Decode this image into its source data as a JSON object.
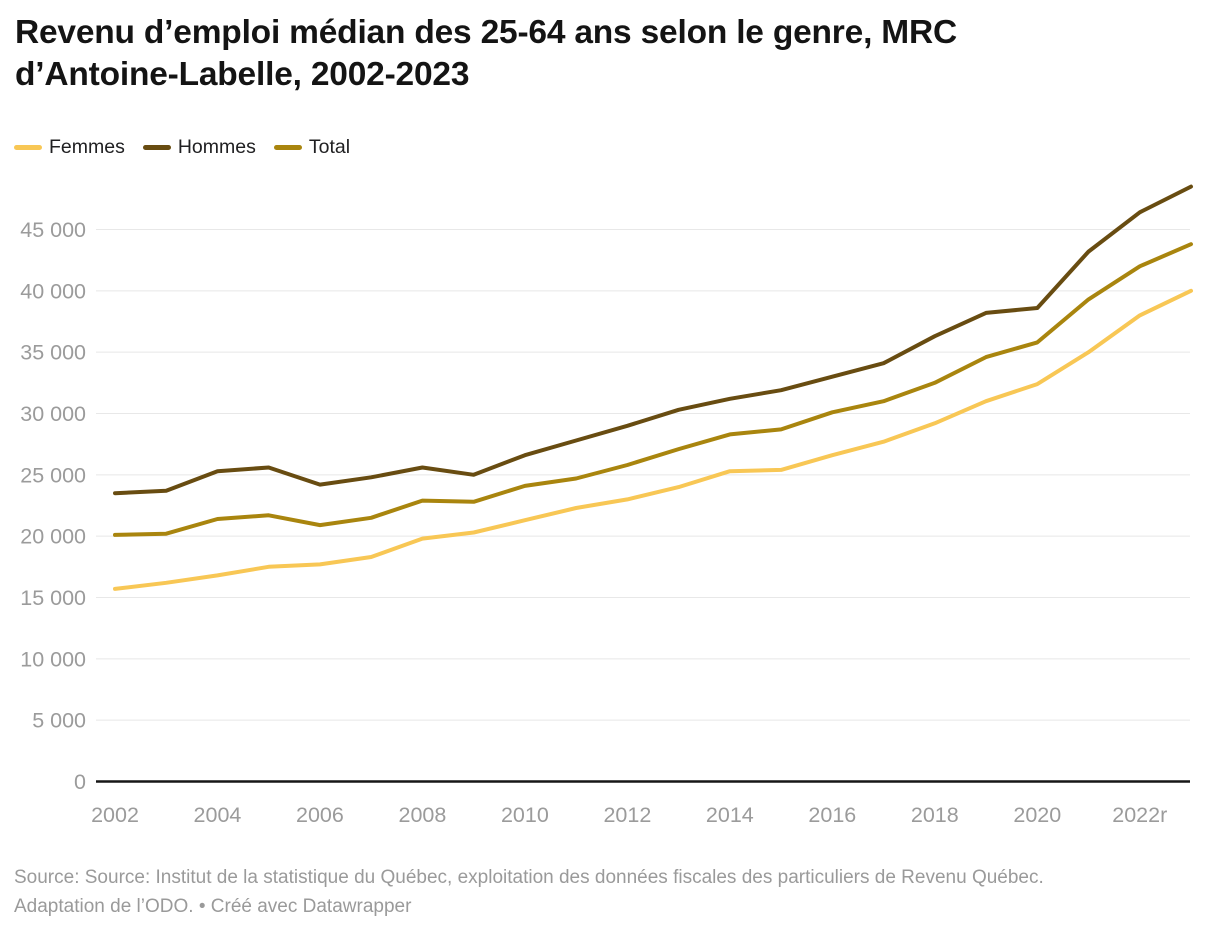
{
  "header": {
    "title_line1": "Revenu d’emploi médian des 25-64 ans selon le genre, MRC",
    "title_line2": "d’Antoine-Labelle, 2002-2023"
  },
  "chart_data": {
    "type": "line",
    "title": "Revenu d’emploi médian des 25-64 ans selon le genre, MRC d’Antoine-Labelle, 2002-2023",
    "x": [
      2002,
      2003,
      2004,
      2005,
      2006,
      2007,
      2008,
      2009,
      2010,
      2011,
      2012,
      2013,
      2014,
      2015,
      2016,
      2017,
      2018,
      2019,
      2020,
      2021,
      2022,
      2023
    ],
    "series": [
      {
        "name": "Femmes",
        "color": "#F8C755",
        "values": [
          15700,
          16200,
          16800,
          17500,
          17700,
          18300,
          19800,
          20300,
          21300,
          22300,
          23000,
          24000,
          25300,
          25400,
          26600,
          27700,
          29200,
          31000,
          32400,
          35000,
          38000,
          40000
        ]
      },
      {
        "name": "Hommes",
        "color": "#684C11",
        "values": [
          23500,
          23700,
          25300,
          25600,
          24200,
          24800,
          25600,
          25000,
          26600,
          27800,
          29000,
          30300,
          31200,
          31900,
          33000,
          34100,
          36300,
          38200,
          38600,
          43200,
          46400,
          48500
        ]
      },
      {
        "name": "Total",
        "color": "#A9850E",
        "values": [
          20100,
          20200,
          21400,
          21700,
          20900,
          21500,
          22900,
          22800,
          24100,
          24700,
          25800,
          27100,
          28300,
          28700,
          30100,
          31000,
          32500,
          34600,
          35800,
          39300,
          42000,
          43800
        ]
      }
    ],
    "ylim": [
      0,
      49000
    ],
    "yticks": [
      0,
      5000,
      10000,
      15000,
      20000,
      25000,
      30000,
      35000,
      40000,
      45000
    ],
    "y_ticklabels": [
      "0",
      "5 000",
      "10 000",
      "15 000",
      "20 000",
      "25 000",
      "30 000",
      "35 000",
      "40 000",
      "45 000"
    ],
    "x_ticks": [
      2002,
      2004,
      2006,
      2008,
      2010,
      2012,
      2014,
      2016,
      2018,
      2020,
      2022
    ],
    "x_ticklabels": [
      "2002",
      "2004",
      "2006",
      "2008",
      "2010",
      "2012",
      "2014",
      "2016",
      "2018",
      "2020",
      "2022r"
    ],
    "grid": "horizontal",
    "legend_position": "top-left",
    "axis_text_color": "#9b9b9b",
    "grid_color": "#e8e8e8",
    "baseline_color": "#161616"
  },
  "footer": {
    "line1": "Source: Source: Institut de la statistique du Québec, exploitation des données fiscales des particuliers de Revenu Québec.",
    "adaptation": "Adaptation de l’ODO.",
    "bullet": "•",
    "byline": "Créé avec Datawrapper"
  }
}
